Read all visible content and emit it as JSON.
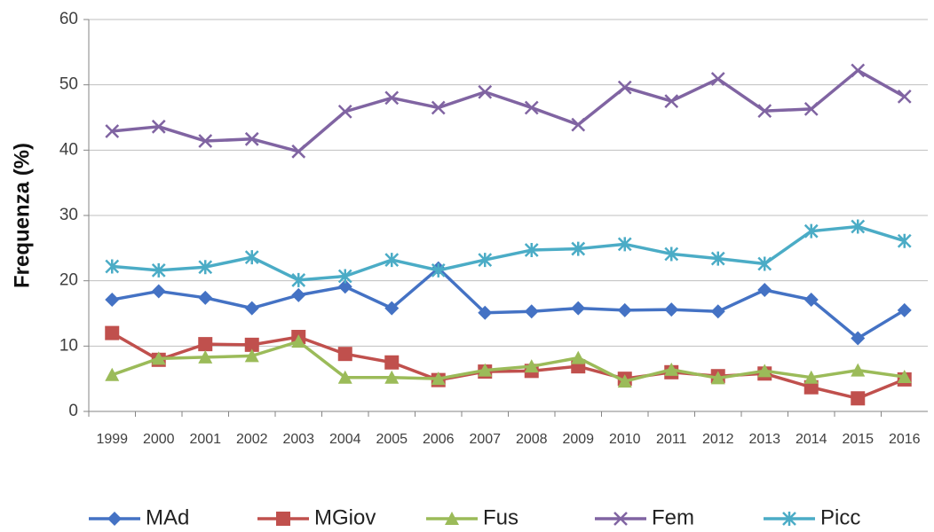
{
  "chart_data": {
    "type": "line",
    "y_label": "Frequenza (%)",
    "categories": [
      "1999",
      "2000",
      "2001",
      "2002",
      "2003",
      "2004",
      "2005",
      "2006",
      "2007",
      "2008",
      "2009",
      "2010",
      "2011",
      "2012",
      "2013",
      "2014",
      "2015",
      "2016"
    ],
    "ylim": [
      0,
      60
    ],
    "yticks": [
      0,
      10,
      20,
      30,
      40,
      50,
      60
    ],
    "grid": true,
    "legend": "bottom",
    "series": [
      {
        "name": "MAd",
        "color": "#4472c4",
        "marker": "diamond",
        "values": [
          17.1,
          18.4,
          17.4,
          15.8,
          17.8,
          19.1,
          15.8,
          21.9,
          15.1,
          15.3,
          15.8,
          15.5,
          15.6,
          15.3,
          18.6,
          17.1,
          11.2,
          15.5
        ]
      },
      {
        "name": "MGiov",
        "color": "#c0504d",
        "marker": "square",
        "values": [
          12.0,
          7.9,
          10.3,
          10.2,
          11.4,
          8.8,
          7.5,
          4.8,
          6.1,
          6.2,
          6.9,
          5.0,
          6.0,
          5.4,
          5.8,
          3.7,
          2.0,
          4.9
        ]
      },
      {
        "name": "Fus",
        "color": "#9bbb59",
        "marker": "triangle",
        "values": [
          5.6,
          8.1,
          8.3,
          8.5,
          10.7,
          5.2,
          5.2,
          5.0,
          6.3,
          6.9,
          8.2,
          4.6,
          6.4,
          5.1,
          6.2,
          5.2,
          6.3,
          5.3
        ]
      },
      {
        "name": "Fem",
        "color": "#8064a2",
        "marker": "x",
        "values": [
          42.9,
          43.6,
          41.4,
          41.7,
          39.8,
          45.9,
          48.0,
          46.5,
          48.9,
          46.5,
          43.9,
          49.6,
          47.5,
          50.9,
          46.0,
          46.3,
          52.2,
          48.2
        ]
      },
      {
        "name": "Picc",
        "color": "#4bacc6",
        "marker": "star",
        "values": [
          22.2,
          21.6,
          22.1,
          23.6,
          20.1,
          20.7,
          23.2,
          21.6,
          23.2,
          24.7,
          24.9,
          25.6,
          24.1,
          23.4,
          22.6,
          27.6,
          28.3,
          26.1
        ]
      }
    ]
  }
}
